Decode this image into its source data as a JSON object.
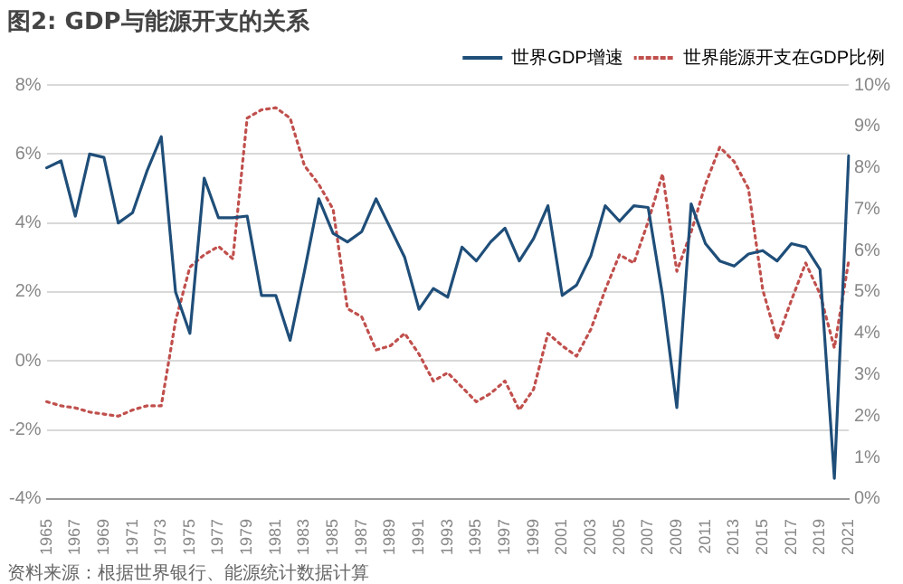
{
  "chart_data": {
    "type": "line",
    "title": "图2: GDP与能源开支的关系",
    "annotations": [
      "资料来源：根据世界银行、能源统计数据计算"
    ],
    "categories": [
      "1965",
      null,
      "1967",
      null,
      "1969",
      null,
      "1971",
      null,
      "1973",
      null,
      "1975",
      null,
      "1977",
      null,
      "1979",
      null,
      "1981",
      null,
      "1983",
      null,
      "1985",
      null,
      "1987",
      null,
      "1989",
      null,
      "1991",
      null,
      "1993",
      null,
      "1995",
      null,
      "1997",
      null,
      "1999",
      null,
      "2001",
      null,
      "2003",
      null,
      "2005",
      null,
      "2007",
      null,
      "2009",
      null,
      "2011",
      null,
      "2013",
      null,
      "2015",
      null,
      "2017",
      null,
      "2019",
      null,
      "2021"
    ],
    "series": [
      {
        "name": "世界GDP增速",
        "color": "#1f4e79",
        "line_style": "solid",
        "values": [
          5.6,
          5.8,
          4.2,
          6.0,
          5.9,
          4.0,
          4.3,
          5.5,
          6.5,
          2.0,
          0.8,
          5.3,
          4.15,
          4.15,
          4.2,
          1.9,
          1.9,
          0.6,
          2.6,
          4.7,
          3.7,
          3.45,
          3.75,
          4.7,
          3.85,
          3.0,
          1.5,
          2.1,
          1.85,
          3.3,
          2.9,
          3.45,
          3.85,
          2.9,
          3.55,
          4.5,
          1.9,
          2.2,
          3.05,
          4.5,
          4.05,
          4.5,
          4.45,
          1.9,
          -1.35,
          4.55,
          3.4,
          2.9,
          2.75,
          3.1,
          3.2,
          2.9,
          3.4,
          3.3,
          2.65,
          -3.4,
          5.95
        ]
      },
      {
        "name": "世界能源开支在GDP比例",
        "color": "#c0504d",
        "axis": "y2",
        "line_style": "dotted",
        "values": [
          2.35,
          2.25,
          2.2,
          2.1,
          2.05,
          2.0,
          2.15,
          2.25,
          2.25,
          4.3,
          5.6,
          5.9,
          6.1,
          5.8,
          9.2,
          9.4,
          9.45,
          9.2,
          8.05,
          7.6,
          7.0,
          4.6,
          4.4,
          3.6,
          3.7,
          4.0,
          3.5,
          2.85,
          3.05,
          2.7,
          2.35,
          2.55,
          2.85,
          2.15,
          2.65,
          4.0,
          3.7,
          3.45,
          4.1,
          5.05,
          5.9,
          5.7,
          6.7,
          7.85,
          5.5,
          6.45,
          7.6,
          8.5,
          8.15,
          7.5,
          5.05,
          3.85,
          4.8,
          5.7,
          4.95,
          3.65,
          5.75
        ]
      }
    ],
    "ylim": [
      -4,
      8
    ],
    "yticks": [
      {
        "value": -4,
        "label": "-4%"
      },
      {
        "value": -2,
        "label": "-2%"
      },
      {
        "value": 0,
        "label": "0%"
      },
      {
        "value": 2,
        "label": "2%"
      },
      {
        "value": 4,
        "label": "4%"
      },
      {
        "value": 6,
        "label": "6%"
      },
      {
        "value": 8,
        "label": "8%"
      }
    ],
    "y2lim": [
      0,
      10
    ],
    "y2ticks": [
      {
        "value": 0,
        "label": "0%"
      },
      {
        "value": 1,
        "label": "1%"
      },
      {
        "value": 2,
        "label": "2%"
      },
      {
        "value": 3,
        "label": "3%"
      },
      {
        "value": 4,
        "label": "4%"
      },
      {
        "value": 5,
        "label": "5%"
      },
      {
        "value": 6,
        "label": "6%"
      },
      {
        "value": 7,
        "label": "7%"
      },
      {
        "value": 8,
        "label": "8%"
      },
      {
        "value": 9,
        "label": "9%"
      },
      {
        "value": 10,
        "label": "10%"
      }
    ],
    "grid": "y",
    "legend": "top right",
    "marker": "none"
  }
}
